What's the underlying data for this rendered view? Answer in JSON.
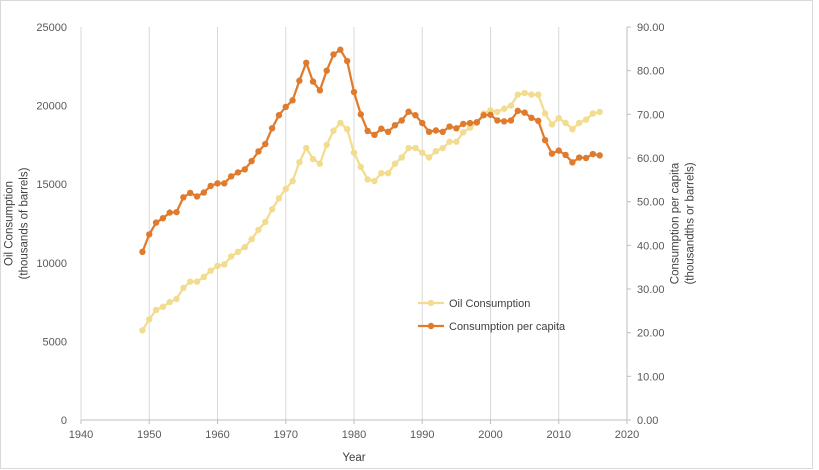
{
  "chart_data": {
    "type": "line",
    "title": "",
    "xlabel": "Year",
    "ylabel": "Oil Consumption\n(thousands of barrels)",
    "y2label": "Consumption per capita\n(thousandths or barrels)",
    "xlim": [
      1940,
      2020
    ],
    "ylim": [
      0,
      25000
    ],
    "y2lim": [
      0,
      90
    ],
    "x_ticks": [
      "1940",
      "1950",
      "1960",
      "1970",
      "1980",
      "1990",
      "2000",
      "2010",
      "2020"
    ],
    "y_ticks": [
      "0",
      "5000",
      "10000",
      "15000",
      "20000",
      "25000"
    ],
    "y2_ticks": [
      "0.00",
      "10.00",
      "20.00",
      "30.00",
      "40.00",
      "50.00",
      "60.00",
      "70.00",
      "80.00",
      "90.00"
    ],
    "grid": "vertical",
    "legend_position": "center-right",
    "series": [
      {
        "name": "Oil Consumption",
        "color": "#f2dc8f",
        "axis": "left",
        "x": [
          1949,
          1950,
          1951,
          1952,
          1953,
          1954,
          1955,
          1956,
          1957,
          1958,
          1959,
          1960,
          1961,
          1962,
          1963,
          1964,
          1965,
          1966,
          1967,
          1968,
          1969,
          1970,
          1971,
          1972,
          1973,
          1974,
          1975,
          1976,
          1977,
          1978,
          1979,
          1980,
          1981,
          1982,
          1983,
          1984,
          1985,
          1986,
          1987,
          1988,
          1989,
          1990,
          1991,
          1992,
          1993,
          1994,
          1995,
          1996,
          1997,
          1998,
          1999,
          2000,
          2001,
          2002,
          2003,
          2004,
          2005,
          2006,
          2007,
          2008,
          2009,
          2010,
          2011,
          2012,
          2013,
          2014,
          2015,
          2016
        ],
        "values": [
          5700,
          6400,
          7000,
          7200,
          7500,
          7700,
          8400,
          8800,
          8800,
          9100,
          9500,
          9800,
          9900,
          10400,
          10700,
          11000,
          11500,
          12100,
          12600,
          13400,
          14100,
          14700,
          15200,
          16400,
          17300,
          16600,
          16300,
          17500,
          18400,
          18900,
          18500,
          17000,
          16100,
          15300,
          15200,
          15700,
          15700,
          16300,
          16700,
          17300,
          17300,
          17000,
          16700,
          17100,
          17300,
          17700,
          17700,
          18300,
          18600,
          18900,
          19500,
          19700,
          19600,
          19800,
          20000,
          20700,
          20800,
          20700,
          20700,
          19500,
          18800,
          19200,
          18900,
          18500,
          18900,
          19100,
          19500,
          19600
        ]
      },
      {
        "name": "Consumption per capita",
        "color": "#e07b2e",
        "axis": "right",
        "x": [
          1949,
          1950,
          1951,
          1952,
          1953,
          1954,
          1955,
          1956,
          1957,
          1958,
          1959,
          1960,
          1961,
          1962,
          1963,
          1964,
          1965,
          1966,
          1967,
          1968,
          1969,
          1970,
          1971,
          1972,
          1973,
          1974,
          1975,
          1976,
          1977,
          1978,
          1979,
          1980,
          1981,
          1982,
          1983,
          1984,
          1985,
          1986,
          1987,
          1988,
          1989,
          1990,
          1991,
          1992,
          1993,
          1994,
          1995,
          1996,
          1997,
          1998,
          1999,
          2000,
          2001,
          2002,
          2003,
          2004,
          2005,
          2006,
          2007,
          2008,
          2009,
          2010,
          2011,
          2012,
          2013,
          2014,
          2015,
          2016
        ],
        "values": [
          38.5,
          42.5,
          45.2,
          46.2,
          47.5,
          47.6,
          51.0,
          52.0,
          51.2,
          52.1,
          53.6,
          54.2,
          54.2,
          55.8,
          56.7,
          57.4,
          59.3,
          61.5,
          63.2,
          66.8,
          69.8,
          71.7,
          73.2,
          77.7,
          81.8,
          77.5,
          75.5,
          80.0,
          83.7,
          84.8,
          82.2,
          75.1,
          70.0,
          66.2,
          65.3,
          66.7,
          66.0,
          67.5,
          68.6,
          70.6,
          69.8,
          68.0,
          66.0,
          66.3,
          66.0,
          67.2,
          66.8,
          67.8,
          68.0,
          68.2,
          69.8,
          69.9,
          68.6,
          68.4,
          68.6,
          70.8,
          70.4,
          69.2,
          68.5,
          64.1,
          61.0,
          61.7,
          60.7,
          59.0,
          60.1,
          60.0,
          60.9,
          60.6
        ]
      }
    ]
  }
}
